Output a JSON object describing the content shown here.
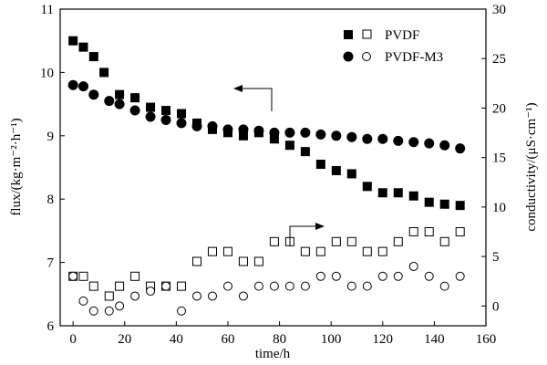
{
  "chart_data": {
    "type": "scatter",
    "xlabel": "time/h",
    "ylabel_left": "flux/(kg·m⁻²·h⁻¹)",
    "ylabel_right": "conductivity/(μS·cm⁻¹)",
    "xlim": [
      -5,
      160
    ],
    "ylim_left": [
      6,
      11
    ],
    "ylim_right": [
      -2,
      30
    ],
    "x_ticks": [
      "0",
      "20",
      "40",
      "60",
      "80",
      "100",
      "120",
      "140",
      "160"
    ],
    "y_left_ticks": [
      "6",
      "7",
      "8",
      "9",
      "10",
      "11"
    ],
    "y_right_ticks": [
      "0",
      "5",
      "10",
      "15",
      "20",
      "25",
      "30"
    ],
    "legend": [
      "PVDF",
      "PVDF-M3"
    ],
    "legend_position": "top-right",
    "series": [
      {
        "name": "PVDF",
        "metric": "flux",
        "axis": "left",
        "marker": "filled-square",
        "x": [
          0,
          4,
          8,
          12,
          18,
          24,
          30,
          36,
          42,
          48,
          54,
          60,
          66,
          72,
          78,
          84,
          90,
          96,
          102,
          108,
          114,
          120,
          126,
          132,
          138,
          144,
          150
        ],
        "y": [
          10.5,
          10.4,
          10.25,
          10.0,
          9.65,
          9.6,
          9.45,
          9.4,
          9.35,
          9.2,
          9.1,
          9.05,
          9.0,
          9.05,
          8.95,
          8.85,
          8.75,
          8.55,
          8.45,
          8.4,
          8.2,
          8.1,
          8.1,
          8.05,
          7.95,
          7.92,
          7.9
        ]
      },
      {
        "name": "PVDF-M3",
        "metric": "flux",
        "axis": "left",
        "marker": "filled-circle",
        "x": [
          0,
          4,
          8,
          14,
          18,
          24,
          30,
          36,
          42,
          48,
          54,
          60,
          66,
          72,
          78,
          84,
          90,
          96,
          102,
          108,
          114,
          120,
          126,
          132,
          138,
          144,
          150
        ],
        "y": [
          9.8,
          9.78,
          9.65,
          9.55,
          9.5,
          9.4,
          9.3,
          9.25,
          9.2,
          9.15,
          9.15,
          9.1,
          9.1,
          9.08,
          9.05,
          9.05,
          9.05,
          9.02,
          9.0,
          8.98,
          8.95,
          8.95,
          8.92,
          8.9,
          8.88,
          8.85,
          8.8
        ]
      },
      {
        "name": "PVDF",
        "metric": "conductivity",
        "axis": "right",
        "marker": "open-square",
        "x": [
          0,
          4,
          8,
          14,
          18,
          24,
          30,
          36,
          42,
          48,
          54,
          60,
          66,
          72,
          78,
          84,
          90,
          96,
          102,
          108,
          114,
          120,
          126,
          132,
          138,
          144,
          150
        ],
        "y": [
          3.0,
          3.0,
          2.0,
          1.0,
          2.0,
          3.0,
          2.0,
          2.0,
          2.0,
          4.5,
          5.5,
          5.5,
          4.5,
          4.5,
          6.5,
          6.5,
          5.5,
          5.5,
          6.5,
          6.5,
          5.5,
          5.5,
          6.5,
          7.5,
          7.5,
          6.5,
          7.5
        ]
      },
      {
        "name": "PVDF-M3",
        "metric": "conductivity",
        "axis": "right",
        "marker": "open-circle",
        "x": [
          0,
          4,
          8,
          14,
          18,
          24,
          30,
          36,
          42,
          48,
          54,
          60,
          66,
          72,
          78,
          84,
          90,
          96,
          102,
          108,
          114,
          120,
          126,
          132,
          138,
          144,
          150
        ],
        "y": [
          3.0,
          0.5,
          -0.5,
          -0.5,
          0.0,
          1.0,
          1.5,
          2.0,
          -0.5,
          1.0,
          1.0,
          2.0,
          1.0,
          2.0,
          2.0,
          2.0,
          2.0,
          3.0,
          3.0,
          2.0,
          2.0,
          3.0,
          3.0,
          4.0,
          3.0,
          2.0,
          3.0
        ]
      }
    ]
  }
}
